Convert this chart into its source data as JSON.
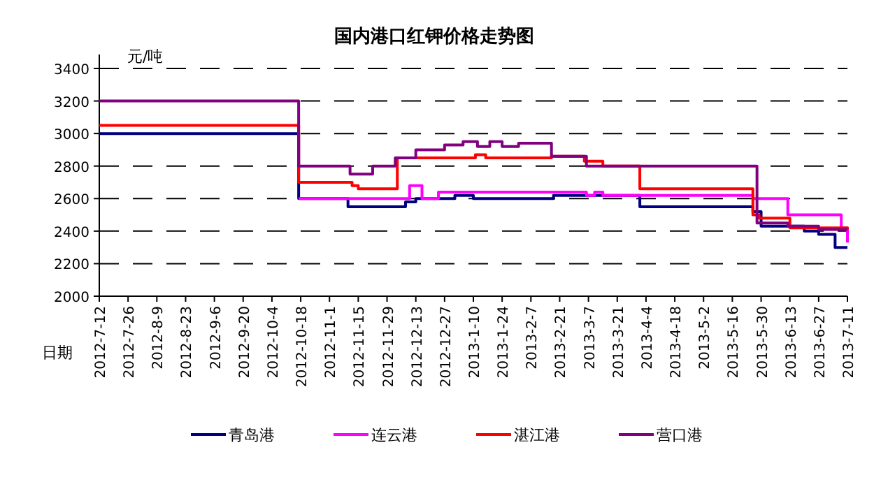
{
  "chart_data": {
    "type": "step",
    "title": "国内港口红钾价格走势图",
    "ylabel": "元/吨",
    "xlabel": "日期",
    "xlim": [
      "2012-07-12",
      "2013-07-11"
    ],
    "ylim": [
      2000,
      3400
    ],
    "yticks": [
      2000,
      2200,
      2400,
      2600,
      2800,
      3000,
      3200,
      3400
    ],
    "xticks": [
      {
        "value": "2012-07-12",
        "label": "2012-7-12"
      },
      {
        "value": "2012-07-26",
        "label": "2012-7-26"
      },
      {
        "value": "2012-08-09",
        "label": "2012-8-9"
      },
      {
        "value": "2012-08-23",
        "label": "2012-8-23"
      },
      {
        "value": "2012-09-06",
        "label": "2012-9-6"
      },
      {
        "value": "2012-09-20",
        "label": "2012-9-20"
      },
      {
        "value": "2012-10-04",
        "label": "2012-10-4"
      },
      {
        "value": "2012-10-18",
        "label": "2012-10-18"
      },
      {
        "value": "2012-11-01",
        "label": "2012-11-1"
      },
      {
        "value": "2012-11-15",
        "label": "2012-11-15"
      },
      {
        "value": "2012-11-29",
        "label": "2012-11-29"
      },
      {
        "value": "2012-12-13",
        "label": "2012-12-13"
      },
      {
        "value": "2012-12-27",
        "label": "2012-12-27"
      },
      {
        "value": "2013-01-10",
        "label": "2013-1-10"
      },
      {
        "value": "2013-01-24",
        "label": "2013-1-24"
      },
      {
        "value": "2013-02-07",
        "label": "2013-2-7"
      },
      {
        "value": "2013-02-21",
        "label": "2013-2-21"
      },
      {
        "value": "2013-03-07",
        "label": "2013-3-7"
      },
      {
        "value": "2013-03-21",
        "label": "2013-3-21"
      },
      {
        "value": "2013-04-04",
        "label": "2013-4-4"
      },
      {
        "value": "2013-04-18",
        "label": "2013-4-18"
      },
      {
        "value": "2013-05-02",
        "label": "2013-5-2"
      },
      {
        "value": "2013-05-16",
        "label": "2013-5-16"
      },
      {
        "value": "2013-05-30",
        "label": "2013-5-30"
      },
      {
        "value": "2013-06-13",
        "label": "2013-6-13"
      },
      {
        "value": "2013-06-27",
        "label": "2013-6-27"
      },
      {
        "value": "2013-07-11",
        "label": "2013-7-11"
      }
    ],
    "grid": "y",
    "legend": "bottom",
    "line_style": "solid",
    "series": [
      {
        "name": "青岛港",
        "color": "#000080",
        "x": [
          "2012-07-12",
          "2012-10-17",
          "2012-11-10",
          "2012-12-08",
          "2012-12-13",
          "2013-01-01",
          "2013-01-10",
          "2013-02-18",
          "2013-04-01",
          "2013-05-26",
          "2013-05-30",
          "2013-06-20",
          "2013-06-27",
          "2013-07-05",
          "2013-07-11"
        ],
        "values": [
          3000,
          2600,
          2550,
          2580,
          2600,
          2620,
          2600,
          2620,
          2550,
          2520,
          2430,
          2400,
          2380,
          2300,
          2300
        ]
      },
      {
        "name": "连云港",
        "color": "#ff00ff",
        "x": [
          "2012-10-17",
          "2012-12-10",
          "2012-12-16",
          "2012-12-24",
          "2013-03-06",
          "2013-03-10",
          "2013-03-14",
          "2013-04-01",
          "2013-05-26",
          "2013-06-12",
          "2013-07-08",
          "2013-07-11"
        ],
        "values": [
          2600,
          2680,
          2600,
          2640,
          2620,
          2640,
          2620,
          2620,
          2600,
          2500,
          2420,
          2330
        ]
      },
      {
        "name": "湛江港",
        "color": "#ff0000",
        "x": [
          "2012-07-12",
          "2012-10-17",
          "2012-11-12",
          "2012-11-15",
          "2012-12-04",
          "2013-01-11",
          "2013-01-16",
          "2013-02-17",
          "2013-03-05",
          "2013-03-14",
          "2013-04-01",
          "2013-05-26",
          "2013-05-29",
          "2013-06-13",
          "2013-07-11"
        ],
        "values": [
          3050,
          2700,
          2680,
          2660,
          2850,
          2870,
          2850,
          2860,
          2830,
          2800,
          2660,
          2500,
          2480,
          2420,
          2410
        ]
      },
      {
        "name": "营口港",
        "color": "#800080",
        "x": [
          "2012-07-12",
          "2012-10-17",
          "2012-11-11",
          "2012-11-22",
          "2012-12-03",
          "2012-12-13",
          "2012-12-27",
          "2013-01-05",
          "2013-01-12",
          "2013-01-18",
          "2013-01-24",
          "2013-02-01",
          "2013-02-17",
          "2013-03-06",
          "2013-05-26",
          "2013-05-28",
          "2013-06-12",
          "2013-06-27",
          "2013-07-11"
        ],
        "values": [
          3200,
          2800,
          2750,
          2800,
          2850,
          2900,
          2930,
          2950,
          2920,
          2950,
          2920,
          2940,
          2860,
          2800,
          2800,
          2450,
          2430,
          2410,
          2410
        ]
      }
    ]
  }
}
